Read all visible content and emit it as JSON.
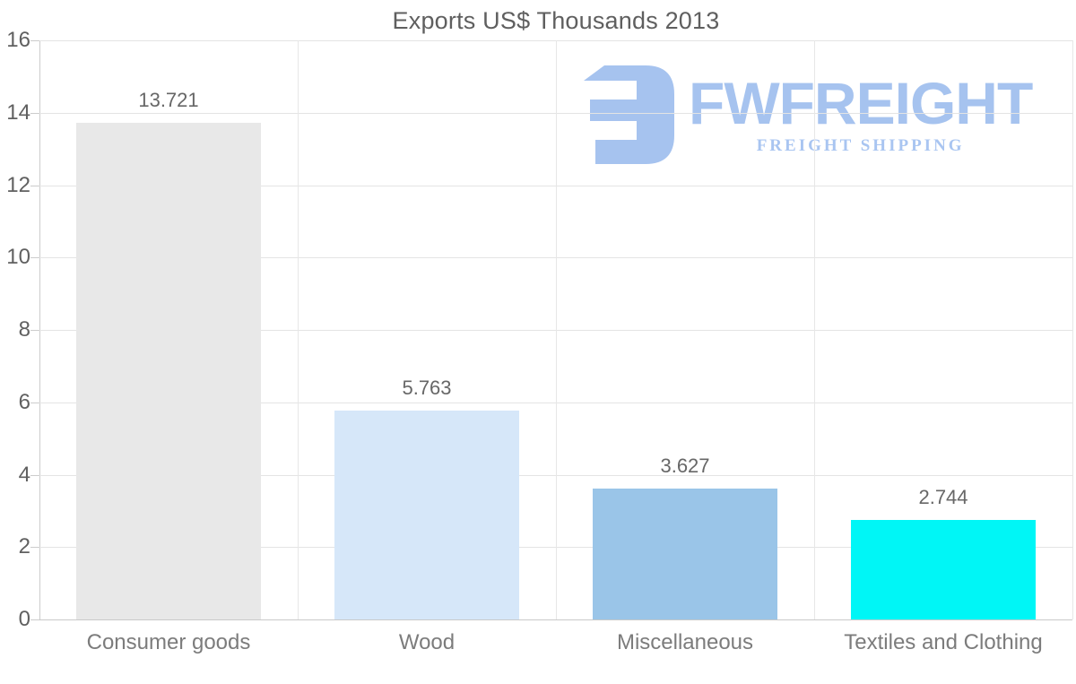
{
  "title": "Exports US$ Thousands 2013",
  "watermark": {
    "wordmark": "FWFREIGHT",
    "subtitle": "FREIGHT SHIPPING",
    "color": "#a6c3ef"
  },
  "chart_data": {
    "type": "bar",
    "title": "Exports US$ Thousands 2013",
    "categories": [
      "Consumer goods",
      "Wood",
      "Miscellaneous",
      "Textiles and Clothing"
    ],
    "values": [
      13.721,
      5.763,
      3.627,
      2.744
    ],
    "value_labels": [
      "13.721",
      "5.763",
      "3.627",
      "2.744"
    ],
    "bar_colors": [
      "#e8e8e8",
      "#d6e7f9",
      "#9ac5e8",
      "#00f6f6"
    ],
    "xlabel": "",
    "ylabel": "",
    "ylim": [
      0,
      16
    ],
    "yticks": [
      0,
      2,
      4,
      6,
      8,
      10,
      12,
      14,
      16
    ],
    "grid": true,
    "legend": false
  },
  "colors": {
    "title_text": "#5f5f5f",
    "axis_text": "#606060",
    "value_text": "#676767",
    "category_text": "#7c7c7c",
    "gridline": "#e4e4e4",
    "axis_line": "#cccccc",
    "background": "#ffffff"
  }
}
